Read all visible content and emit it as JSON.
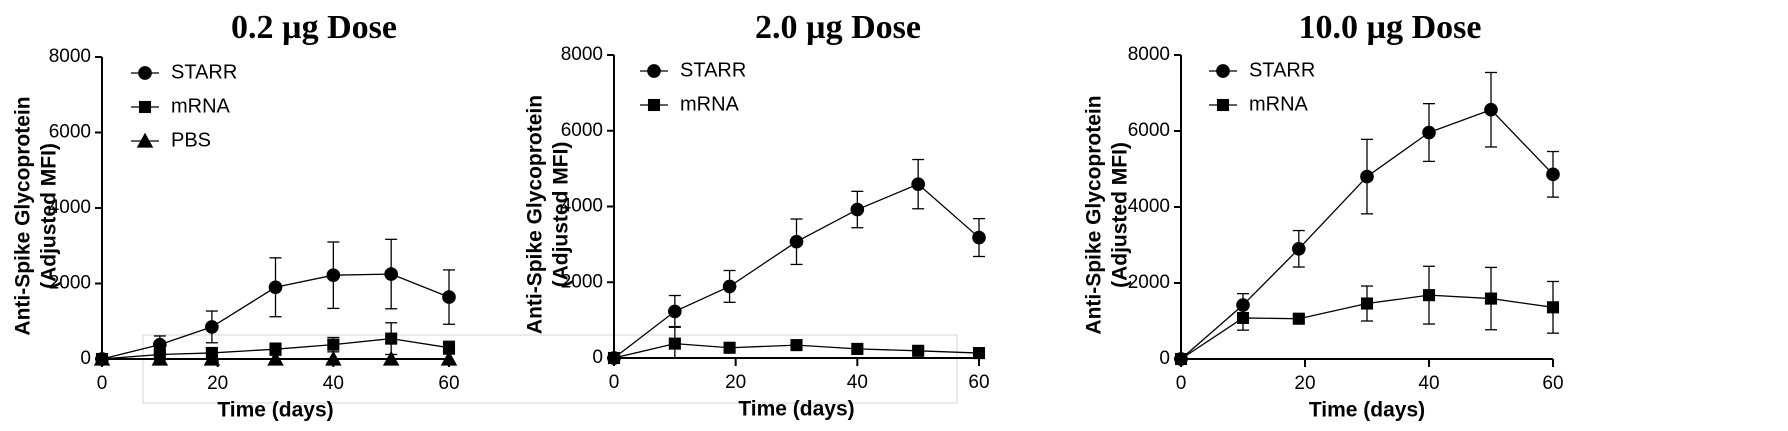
{
  "chart_data": [
    {
      "type": "line",
      "title": "0.2 µg Dose",
      "xlabel": "Time (days)",
      "ylabel_line1": "Anti-Spike Glycoprotein",
      "ylabel_line2": "(Adjusted MFI)",
      "xlim": [
        0,
        60
      ],
      "ylim": [
        0,
        8000
      ],
      "xticks": [
        0,
        20,
        40,
        60
      ],
      "yticks": [
        0,
        2000,
        4000,
        6000,
        8000
      ],
      "grid": false,
      "legend_position": "top-left",
      "series": [
        {
          "name": "STARR",
          "marker": "circle",
          "x": [
            0,
            10,
            19,
            30,
            40,
            50,
            60
          ],
          "y": [
            0,
            380,
            850,
            1900,
            2220,
            2250,
            1640
          ],
          "err": [
            0,
            230,
            420,
            780,
            880,
            920,
            720
          ]
        },
        {
          "name": "mRNA",
          "marker": "square",
          "x": [
            0,
            10,
            19,
            30,
            40,
            50,
            60
          ],
          "y": [
            0,
            120,
            160,
            260,
            380,
            540,
            300
          ],
          "err": [
            0,
            110,
            140,
            160,
            190,
            420,
            170
          ]
        },
        {
          "name": "PBS",
          "marker": "triangle",
          "x": [
            0,
            10,
            19,
            30,
            40,
            50,
            60
          ],
          "y": [
            0,
            0,
            0,
            0,
            0,
            0,
            0
          ],
          "err": [
            0,
            0,
            0,
            0,
            0,
            0,
            0
          ]
        }
      ]
    },
    {
      "type": "line",
      "title": "2.0 µg Dose",
      "xlabel": "Time (days)",
      "ylabel_line1": "Anti-Spike Glycoprotein",
      "ylabel_line2": "(Adjusted MFI)",
      "xlim": [
        0,
        60
      ],
      "ylim": [
        0,
        8000
      ],
      "xticks": [
        0,
        20,
        40,
        60
      ],
      "yticks": [
        0,
        2000,
        4000,
        6000,
        8000
      ],
      "grid": false,
      "legend_position": "top-left",
      "series": [
        {
          "name": "STARR",
          "marker": "circle",
          "x": [
            0,
            10,
            19,
            30,
            40,
            50,
            60
          ],
          "y": [
            0,
            1230,
            1890,
            3070,
            3920,
            4590,
            3180
          ],
          "err": [
            0,
            420,
            420,
            600,
            480,
            650,
            500
          ]
        },
        {
          "name": "mRNA",
          "marker": "square",
          "x": [
            0,
            10,
            19,
            30,
            40,
            50,
            60
          ],
          "y": [
            0,
            380,
            270,
            340,
            240,
            190,
            130
          ],
          "err": [
            0,
            450,
            90,
            80,
            60,
            60,
            60
          ]
        }
      ]
    },
    {
      "type": "line",
      "title": "10.0 µg Dose",
      "xlabel": "Time (days)",
      "ylabel_line1": "Anti-Spike Glycoprotein",
      "ylabel_line2": "(Adjusted MFI)",
      "xlim": [
        0,
        60
      ],
      "ylim": [
        0,
        8000
      ],
      "xticks": [
        0,
        20,
        40,
        60
      ],
      "yticks": [
        0,
        2000,
        4000,
        6000,
        8000
      ],
      "grid": false,
      "legend_position": "top-left",
      "series": [
        {
          "name": "STARR",
          "marker": "circle",
          "x": [
            0,
            10,
            19,
            30,
            40,
            50,
            60
          ],
          "y": [
            0,
            1420,
            2900,
            4800,
            5960,
            6560,
            4860
          ],
          "err": [
            0,
            300,
            480,
            980,
            760,
            980,
            600
          ]
        },
        {
          "name": "mRNA",
          "marker": "square",
          "x": [
            0,
            10,
            19,
            30,
            40,
            50,
            60
          ],
          "y": [
            0,
            1080,
            1060,
            1460,
            1680,
            1590,
            1360
          ],
          "err": [
            0,
            320,
            80,
            460,
            760,
            820,
            680
          ]
        }
      ]
    }
  ]
}
